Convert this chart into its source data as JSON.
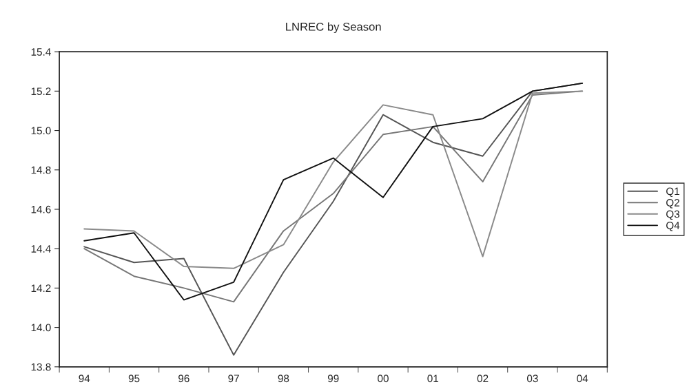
{
  "chart_data": {
    "type": "line",
    "title": "LNREC by Season",
    "categories": [
      "94",
      "95",
      "96",
      "97",
      "98",
      "99",
      "00",
      "01",
      "02",
      "03",
      "04"
    ],
    "series": [
      {
        "name": "Q1",
        "color": "#555555",
        "values": [
          14.41,
          14.33,
          14.35,
          13.86,
          14.28,
          14.64,
          15.08,
          14.94,
          14.87,
          15.2,
          15.24
        ]
      },
      {
        "name": "Q2",
        "color": "#777777",
        "values": [
          14.4,
          14.26,
          14.2,
          14.13,
          14.49,
          14.68,
          14.98,
          15.02,
          14.74,
          15.18,
          15.2
        ]
      },
      {
        "name": "Q3",
        "color": "#8a8a8a",
        "values": [
          14.5,
          14.49,
          14.31,
          14.3,
          14.42,
          14.84,
          15.13,
          15.08,
          14.36,
          15.19,
          15.2
        ]
      },
      {
        "name": "Q4",
        "color": "#111111",
        "values": [
          14.44,
          14.48,
          14.14,
          14.23,
          14.75,
          14.86,
          14.66,
          15.02,
          15.06,
          15.2,
          15.24
        ]
      }
    ],
    "ylim": [
      13.8,
      15.4
    ],
    "yticks": [
      {
        "value": 13.8,
        "label": "13.8"
      },
      {
        "value": 14.0,
        "label": "14.0"
      },
      {
        "value": 14.2,
        "label": "14.2"
      },
      {
        "value": 14.4,
        "label": "14.4"
      },
      {
        "value": 14.6,
        "label": "14.6"
      },
      {
        "value": 14.8,
        "label": "14.8"
      },
      {
        "value": 15.0,
        "label": "15.0"
      },
      {
        "value": 15.2,
        "label": "15.2"
      },
      {
        "value": 15.4,
        "label": "15.4"
      }
    ],
    "grid": false,
    "legend": "right",
    "line_style": "solid"
  }
}
